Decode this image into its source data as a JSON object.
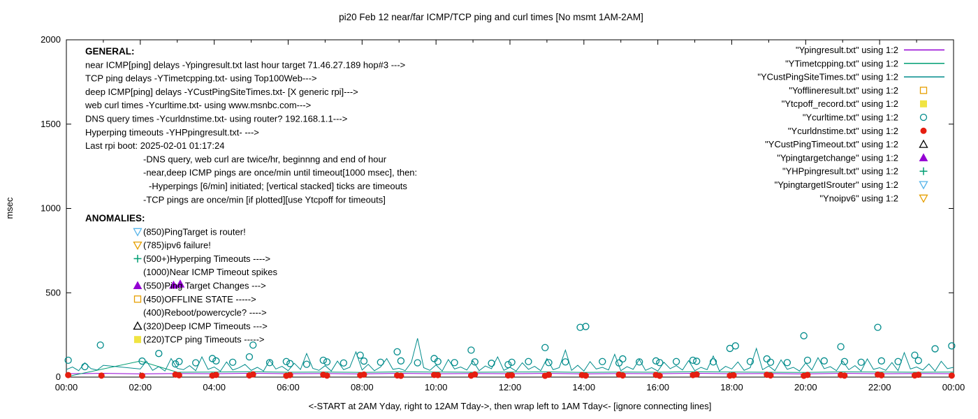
{
  "chart_data": {
    "type": "line",
    "title": "pi20 Feb 12  near/far ICMP/TCP ping and curl times [No msmt 1AM-2AM]",
    "xlabel": "<-START at 2AM Yday, right to 12AM Tday->, then wrap left to 1AM Tday<- [ignore connecting lines]",
    "ylabel": "msec",
    "xlim_hours": [
      0,
      24
    ],
    "ylim": [
      0,
      2000
    ],
    "grid": false,
    "legend_position": "top-right-inside",
    "x_tick_labels": [
      "00:00",
      "02:00",
      "04:00",
      "06:00",
      "08:00",
      "10:00",
      "12:00",
      "14:00",
      "16:00",
      "18:00",
      "20:00",
      "22:00",
      "00:00"
    ],
    "y_ticks": [
      0,
      500,
      1000,
      1500,
      2000
    ],
    "series": [
      {
        "name": "Ypingresult.txt",
        "kind": "line",
        "color": "#9400d3",
        "x_start_hours": 0,
        "x_step_hours": 1,
        "values": [
          20,
          22,
          19,
          21,
          20,
          23,
          20,
          21,
          19,
          22,
          20,
          21,
          20,
          22,
          19,
          21,
          20,
          23,
          20,
          21,
          19,
          22,
          20,
          21,
          20
        ]
      },
      {
        "name": "YTimetcpping.txt",
        "kind": "line",
        "color": "#009e73",
        "x_start_hours": 0,
        "x_step_hours": 1,
        "values": [
          2,
          null,
          95,
          29,
          30,
          32,
          29,
          30,
          28,
          31,
          30,
          29,
          30,
          31,
          28,
          30,
          29,
          32,
          30,
          29,
          28,
          31,
          30,
          29,
          30
        ]
      },
      {
        "name": "YCustPingSiteTimes.txt",
        "kind": "line",
        "color": "#008b8b",
        "x_start_hours": 0,
        "x_step_hours": 0.1666667,
        "values": [
          45,
          60,
          38,
          85,
          50,
          42,
          70,
          null,
          null,
          null,
          null,
          null,
          48,
          95,
          40,
          62,
          36,
          110,
          52,
          44,
          68,
          38,
          120,
          46,
          60,
          35,
          90,
          42,
          55,
          75,
          40,
          58,
          36,
          100,
          48,
          64,
          38,
          82,
          45,
          140,
          52,
          40,
          68,
          36,
          95,
          44,
          58,
          150,
          42,
          76,
          38,
          60,
          110,
          46,
          52,
          38,
          88,
          230,
          56,
          40,
          72,
          36,
          104,
          48,
          60,
          42,
          96,
          38,
          66,
          50,
          120,
          40,
          58,
          36,
          85,
          46,
          64,
          38,
          110,
          44,
          56,
          160,
          40,
          70,
          36,
          92,
          48,
          58,
          42,
          135,
          38,
          62,
          46,
          105,
          40,
          56,
          36,
          88,
          50,
          68,
          42,
          98,
          38,
          58,
          44,
          125,
          36,
          64,
          48,
          90,
          40,
          56,
          170,
          44,
          66,
          38,
          102,
          46,
          58,
          36,
          84,
          42,
          115,
          50,
          62,
          38,
          95,
          44,
          68,
          36,
          108,
          46,
          56,
          40,
          86,
          38,
          145,
          48,
          60,
          42,
          78,
          36,
          94,
          50,
          58
        ]
      },
      {
        "name": "Ycurltime.txt",
        "kind": "scatter",
        "marker": "circle-open",
        "color": "#008b8b",
        "points": [
          [
            0.05,
            100
          ],
          [
            0.5,
            62
          ],
          [
            0.92,
            190
          ],
          [
            2.05,
            95
          ],
          [
            2.5,
            140
          ],
          [
            2.95,
            78
          ],
          [
            3.05,
            92
          ],
          [
            3.5,
            85
          ],
          [
            3.95,
            110
          ],
          [
            4.05,
            96
          ],
          [
            4.5,
            88
          ],
          [
            4.95,
            120
          ],
          [
            5.05,
            190
          ],
          [
            5.5,
            86
          ],
          [
            5.95,
            92
          ],
          [
            6.05,
            80
          ],
          [
            6.5,
            76
          ],
          [
            6.95,
            100
          ],
          [
            7.05,
            90
          ],
          [
            7.5,
            84
          ],
          [
            7.95,
            130
          ],
          [
            8.05,
            95
          ],
          [
            8.5,
            88
          ],
          [
            8.95,
            150
          ],
          [
            9.05,
            96
          ],
          [
            9.5,
            85
          ],
          [
            9.95,
            110
          ],
          [
            10.05,
            92
          ],
          [
            10.5,
            86
          ],
          [
            10.95,
            160
          ],
          [
            11.05,
            90
          ],
          [
            11.5,
            82
          ],
          [
            11.95,
            74
          ],
          [
            12.05,
            88
          ],
          [
            12.5,
            92
          ],
          [
            12.95,
            175
          ],
          [
            13.05,
            86
          ],
          [
            13.5,
            90
          ],
          [
            13.9,
            295
          ],
          [
            14.05,
            300
          ],
          [
            14.5,
            92
          ],
          [
            14.95,
            84
          ],
          [
            15.05,
            108
          ],
          [
            15.5,
            90
          ],
          [
            15.95,
            96
          ],
          [
            16.05,
            86
          ],
          [
            16.5,
            92
          ],
          [
            16.95,
            100
          ],
          [
            17.05,
            94
          ],
          [
            17.5,
            90
          ],
          [
            17.95,
            170
          ],
          [
            18.1,
            185
          ],
          [
            18.5,
            92
          ],
          [
            18.95,
            108
          ],
          [
            19.05,
            88
          ],
          [
            19.5,
            86
          ],
          [
            19.95,
            245
          ],
          [
            20.05,
            100
          ],
          [
            20.5,
            96
          ],
          [
            20.95,
            180
          ],
          [
            21.05,
            92
          ],
          [
            21.5,
            88
          ],
          [
            21.95,
            295
          ],
          [
            22.05,
            96
          ],
          [
            22.5,
            92
          ],
          [
            22.95,
            130
          ],
          [
            23.05,
            98
          ],
          [
            23.5,
            168
          ],
          [
            23.95,
            185
          ]
        ]
      },
      {
        "name": "Ycurldnstime.txt",
        "kind": "scatter",
        "marker": "circle-filled",
        "color": "#e51e10",
        "points": [
          [
            0.05,
            12
          ],
          [
            0.95,
            9
          ],
          [
            2.05,
            8
          ],
          [
            2.95,
            15
          ],
          [
            3.05,
            11
          ],
          [
            3.95,
            9
          ],
          [
            4.05,
            13
          ],
          [
            4.95,
            10
          ],
          [
            5.05,
            16
          ],
          [
            5.95,
            8
          ],
          [
            6.05,
            12
          ],
          [
            6.95,
            14
          ],
          [
            7.05,
            9
          ],
          [
            7.95,
            11
          ],
          [
            8.05,
            15
          ],
          [
            8.95,
            10
          ],
          [
            9.05,
            8
          ],
          [
            9.95,
            13
          ],
          [
            10.05,
            12
          ],
          [
            10.95,
            9
          ],
          [
            11.05,
            16
          ],
          [
            11.95,
            10
          ],
          [
            12.05,
            11
          ],
          [
            12.95,
            8
          ],
          [
            13.05,
            14
          ],
          [
            13.95,
            12
          ],
          [
            14.05,
            9
          ],
          [
            14.95,
            15
          ],
          [
            15.05,
            10
          ],
          [
            15.95,
            13
          ],
          [
            16.05,
            8
          ],
          [
            16.95,
            12
          ],
          [
            17.05,
            16
          ],
          [
            17.95,
            9
          ],
          [
            18.05,
            11
          ],
          [
            18.95,
            14
          ],
          [
            19.05,
            10
          ],
          [
            19.95,
            8
          ],
          [
            20.05,
            13
          ],
          [
            20.95,
            12
          ],
          [
            21.05,
            9
          ],
          [
            21.95,
            15
          ],
          [
            22.05,
            11
          ],
          [
            22.95,
            10
          ],
          [
            23.05,
            14
          ],
          [
            23.95,
            9
          ]
        ]
      },
      {
        "name": "Ypingtargetchange",
        "kind": "scatter",
        "marker": "tri-up-filled",
        "color": "#9400d3",
        "points": [
          [
            2.9,
            545
          ],
          [
            3.08,
            552
          ]
        ]
      }
    ]
  },
  "legend": [
    {
      "label": "\"Ypingresult.txt\" using 1:2",
      "sample": "line",
      "color": "#9400d3"
    },
    {
      "label": "\"YTimetcpping.txt\" using 1:2",
      "sample": "line",
      "color": "#009e73"
    },
    {
      "label": "\"YCustPingSiteTimes.txt\" using 1:2",
      "sample": "line",
      "color": "#008b8b"
    },
    {
      "label": "\"Yofflineresult.txt\" using 1:2",
      "sample": "square-open",
      "color": "#e69f00"
    },
    {
      "label": "\"Ytcpoff_record.txt\" using 1:2",
      "sample": "square-filled",
      "color": "#f0e442"
    },
    {
      "label": "\"Ycurltime.txt\" using 1:2",
      "sample": "circle-open",
      "color": "#008b8b"
    },
    {
      "label": "\"Ycurldnstime.txt\" using 1:2",
      "sample": "circle-filled",
      "color": "#e51e10"
    },
    {
      "label": "\"YCustPingTimeout.txt\" using 1:2",
      "sample": "tri-up-open",
      "color": "#000000"
    },
    {
      "label": "\"Ypingtargetchange\" using 1:2",
      "sample": "tri-up-filled",
      "color": "#9400d3"
    },
    {
      "label": "\"YHPpingresult.txt\" using 1:2",
      "sample": "plus",
      "color": "#009e73"
    },
    {
      "label": "\"YpingtargetISrouter\" using 1:2",
      "sample": "tri-down-open",
      "color": "#56b4e9"
    },
    {
      "label": "\"Ynoipv6\" using 1:2",
      "sample": "tri-down-open",
      "color": "#e69f00"
    }
  ],
  "general": {
    "heading": "GENERAL:",
    "lines": [
      {
        "text": "near ICMP[ping] delays -Ypingresult.txt last hour target 71.46.27.189 hop#3 --->",
        "indent": 0
      },
      {
        "text": "TCP ping delays -YTimetcpping.txt- using Top100Web--->",
        "indent": 0
      },
      {
        "text": "deep ICMP[ping] delays -YCustPingSiteTimes.txt- [X generic rpi]--->",
        "indent": 0
      },
      {
        "text": "web curl times -Ycurltime.txt- using www.msnbc.com--->",
        "indent": 0
      },
      {
        "text": "DNS query times -Ycurldnstime.txt- using router? 192.168.1.1--->",
        "indent": 0
      },
      {
        "text": "Hyperping timeouts -YHPpingresult.txt- --->",
        "indent": 0
      },
      {
        "text": "Last rpi boot: 2025-02-01 01:17:24",
        "indent": 0
      },
      {
        "text": "-DNS query, web curl are twice/hr, beginnng and end of hour",
        "indent": 1
      },
      {
        "text": "-near,deep ICMP pings are once/min until timeout[1000 msec], then:",
        "indent": 1
      },
      {
        "text": "-Hyperpings [6/min] initiated; [vertical stacked] ticks are timeouts",
        "indent": 2
      },
      {
        "text": "-TCP pings are once/min [if plotted][use Ytcpoff for timeouts]",
        "indent": 1
      }
    ]
  },
  "anomalies": {
    "heading": "ANOMALIES:",
    "items": [
      {
        "marker": "tri-down-open",
        "color": "#56b4e9",
        "text": "(850)PingTarget is router!"
      },
      {
        "marker": "tri-down-open",
        "color": "#e69f00",
        "text": "(785)ipv6 failure!"
      },
      {
        "marker": "plus",
        "color": "#009e73",
        "text": "(500+)Hyperping Timeouts ---->"
      },
      {
        "marker": "none",
        "color": "",
        "text": "(1000)Near ICMP Timeout spikes"
      },
      {
        "marker": "tri-up-filled",
        "color": "#9400d3",
        "text": "(550)Ping Target Changes --->"
      },
      {
        "marker": "square-open",
        "color": "#e69f00",
        "text": "(450)OFFLINE STATE ----->"
      },
      {
        "marker": "none",
        "color": "",
        "text": "(400)Reboot/powercycle? ---->"
      },
      {
        "marker": "tri-up-open",
        "color": "#000000",
        "text": "(320)Deep ICMP Timeouts --->"
      },
      {
        "marker": "square-filled",
        "color": "#f0e442",
        "text": "(220)TCP ping Timeouts ----->"
      }
    ]
  }
}
